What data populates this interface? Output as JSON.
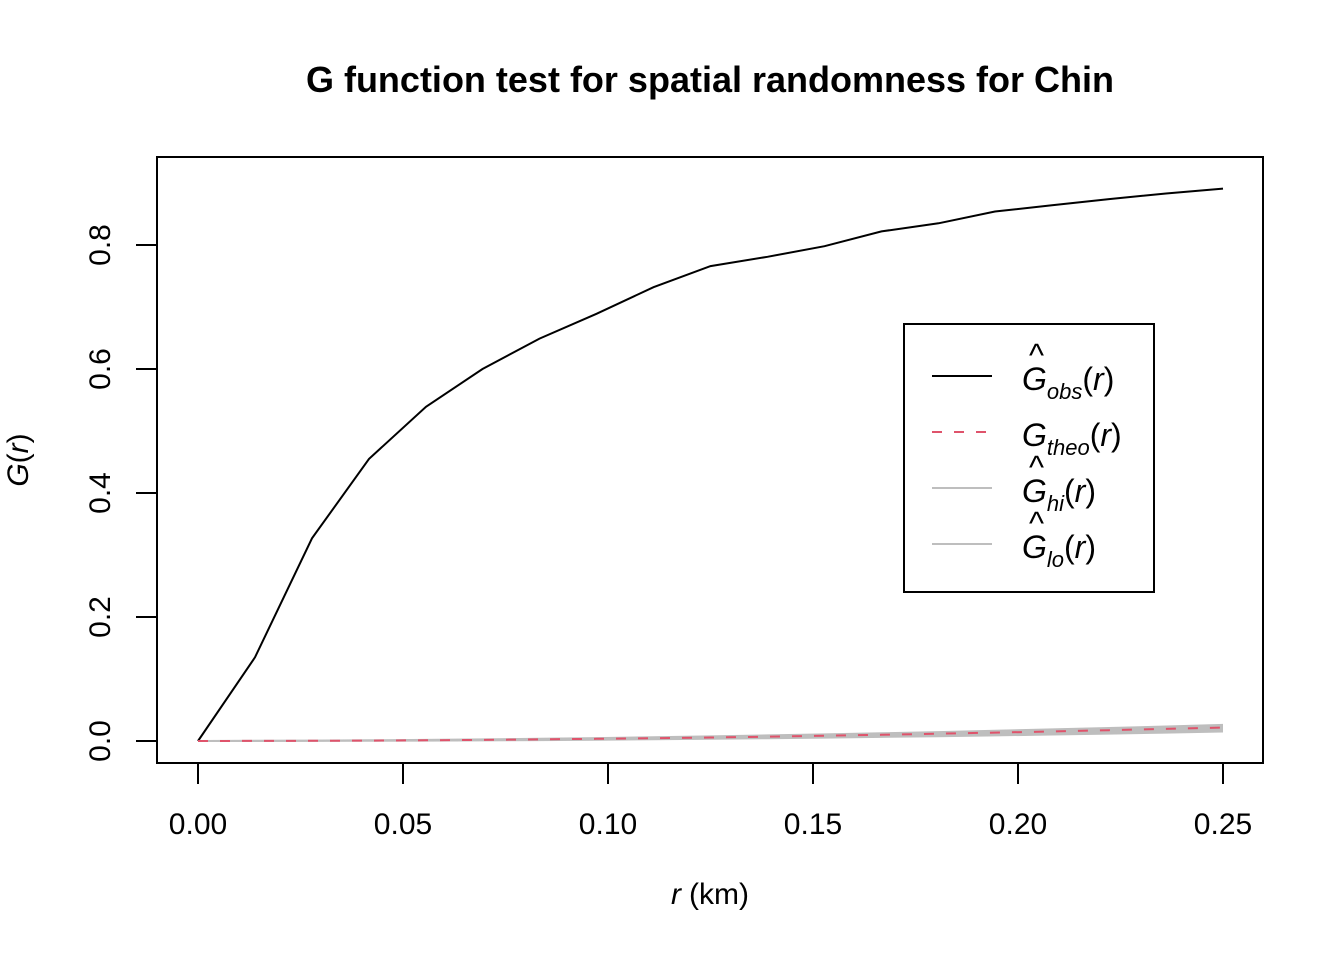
{
  "chart_data": {
    "type": "line",
    "title": "G function test for spatial randomness for Chin",
    "xlabel": {
      "var": "r",
      "unit": "(km)"
    },
    "ylabel": {
      "fn": "G",
      "open": "(",
      "var": "r",
      "close": ")"
    },
    "xlim": [
      0,
      0.25
    ],
    "ylim": [
      0,
      0.9
    ],
    "x_ticks": [
      "0.00",
      "0.05",
      "0.10",
      "0.15",
      "0.20",
      "0.25"
    ],
    "y_ticks": [
      "0.0",
      "0.2",
      "0.4",
      "0.6",
      "0.8"
    ],
    "grid": false,
    "legend_position": "right",
    "x": [
      0.0,
      0.0139,
      0.0278,
      0.0417,
      0.0556,
      0.0694,
      0.0833,
      0.0972,
      0.1111,
      0.125,
      0.1389,
      0.1528,
      0.1667,
      0.1806,
      0.1944,
      0.2083,
      0.2222,
      0.2361,
      0.25
    ],
    "series": [
      {
        "key": "obs",
        "legend": {
          "sym": "G",
          "hat": true,
          "sub": "obs",
          "arg": "(r)"
        },
        "color": "#000000",
        "dash": "none",
        "values": [
          0.0,
          0.135,
          0.327,
          0.455,
          0.539,
          0.6,
          0.649,
          0.689,
          0.732,
          0.766,
          0.781,
          0.798,
          0.822,
          0.835,
          0.854,
          0.864,
          0.874,
          0.883,
          0.891
        ]
      },
      {
        "key": "theo",
        "legend": {
          "sym": "G",
          "hat": false,
          "sub": "theo",
          "arg": "(r)"
        },
        "color": "#DF536B",
        "dash": "10,12",
        "values": [
          0.0,
          0.0001,
          0.0003,
          0.0007,
          0.0012,
          0.0018,
          0.0026,
          0.0035,
          0.0045,
          0.0057,
          0.007,
          0.0085,
          0.01,
          0.0117,
          0.0135,
          0.0154,
          0.0174,
          0.0195,
          0.0217
        ]
      },
      {
        "key": "hi",
        "legend": {
          "sym": "G",
          "hat": true,
          "sub": "hi",
          "arg": "(r)"
        },
        "color": "#BEBEBE",
        "dash": "none",
        "values": [
          0.0,
          0.0003,
          0.0006,
          0.0012,
          0.0018,
          0.0026,
          0.0036,
          0.0047,
          0.006,
          0.0074,
          0.009,
          0.0107,
          0.0125,
          0.0144,
          0.0165,
          0.0187,
          0.021,
          0.0234,
          0.026
        ]
      },
      {
        "key": "lo",
        "legend": {
          "sym": "G",
          "hat": true,
          "sub": "lo",
          "arg": "(r)"
        },
        "color": "#BEBEBE",
        "dash": "none",
        "values": [
          0.0,
          0.0,
          0.0001,
          0.0003,
          0.0006,
          0.001,
          0.0015,
          0.0021,
          0.0028,
          0.0036,
          0.0045,
          0.0055,
          0.0066,
          0.0078,
          0.0091,
          0.0105,
          0.012,
          0.0136,
          0.0153
        ]
      }
    ],
    "envelope_fill": "#BEBEBE"
  }
}
